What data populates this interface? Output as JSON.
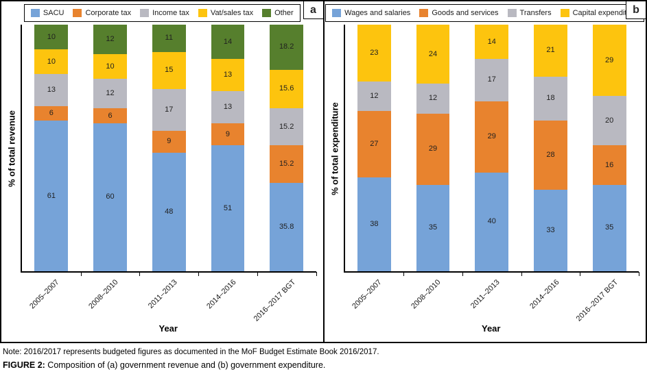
{
  "figure": {
    "note": "Note: 2016/2017 represents budgeted figures as documented in the MoF Budget Estimate Book 2016/2017.",
    "caption_prefix": "FIGURE 2:",
    "caption_text": " Composition of (a) government revenue and (b) government expenditure."
  },
  "chart_data": [
    {
      "type": "bar",
      "stacked": true,
      "panel_label": "a",
      "xlabel": "Year",
      "ylabel": "% of total revenue",
      "ylim": [
        0,
        100
      ],
      "grid": false,
      "legend_position": "top",
      "categories": [
        "2005–2007",
        "2008–2010",
        "2011–2013",
        "2014–2016",
        "2016–2017 BGT"
      ],
      "series": [
        {
          "name": "SACU",
          "color": "#76A3D8",
          "values": [
            61,
            60,
            48,
            51,
            35.8
          ]
        },
        {
          "name": "Corporate tax",
          "color": "#E8832E",
          "values": [
            6,
            6,
            9,
            9,
            15.2
          ]
        },
        {
          "name": "Income tax",
          "color": "#B9B9C1",
          "values": [
            13,
            12,
            17,
            13,
            15.2
          ]
        },
        {
          "name": "Vat/sales tax",
          "color": "#FDC40E",
          "values": [
            10,
            10,
            15,
            13,
            15.6
          ]
        },
        {
          "name": "Other",
          "color": "#567F2D",
          "values": [
            10,
            12,
            11,
            14,
            18.2
          ]
        }
      ]
    },
    {
      "type": "bar",
      "stacked": true,
      "panel_label": "b",
      "xlabel": "Year",
      "ylabel": "% of total expenditure",
      "ylim": [
        0,
        100
      ],
      "grid": false,
      "legend_position": "top",
      "categories": [
        "2005–2007",
        "2008–2010",
        "2011–2013",
        "2014–2016",
        "2016–2017 BGT"
      ],
      "series": [
        {
          "name": "Wages and salaries",
          "color": "#76A3D8",
          "values": [
            38,
            35,
            40,
            33,
            35
          ]
        },
        {
          "name": "Goods and services",
          "color": "#E8832E",
          "values": [
            27,
            29,
            29,
            28,
            16
          ]
        },
        {
          "name": "Transfers",
          "color": "#B9B9C1",
          "values": [
            12,
            12,
            17,
            18,
            20
          ]
        },
        {
          "name": "Capital expenditure",
          "color": "#FDC40E",
          "values": [
            23,
            24,
            14,
            21,
            29
          ]
        }
      ]
    }
  ]
}
